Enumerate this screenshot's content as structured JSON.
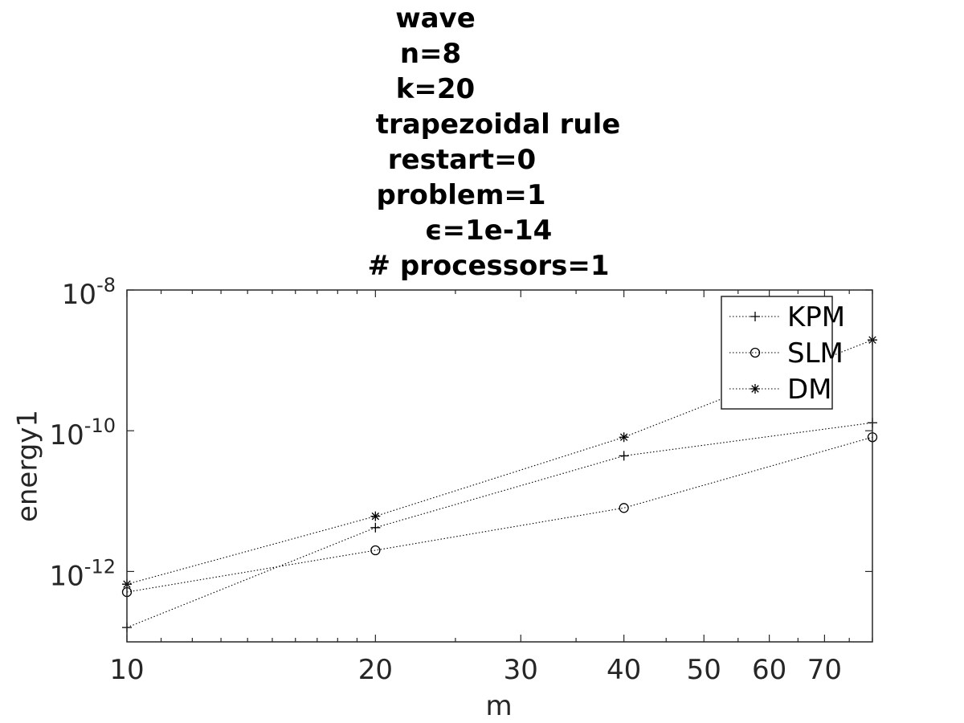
{
  "chart_data": {
    "type": "line",
    "title_lines": [
      "wave",
      "n=8",
      "k=20",
      "trapezoidal rule",
      "restart=0",
      "problem=1",
      "ϵ=1e-14",
      "# processors=1"
    ],
    "xlabel": "m",
    "ylabel": "energy1",
    "x_scale": "log",
    "y_scale": "log",
    "xlim": [
      10,
      80
    ],
    "ylim": [
      1e-13,
      1e-08
    ],
    "x_ticks": [
      10,
      20,
      30,
      40,
      50,
      60,
      70
    ],
    "x_tick_labels": [
      "10",
      "20",
      "30",
      "40",
      "50",
      "60",
      "70"
    ],
    "y_ticks": [
      1e-12,
      1e-10,
      1e-08
    ],
    "y_tick_labels": [
      {
        "base": "10",
        "exp": "-12"
      },
      {
        "base": "10",
        "exp": "-10"
      },
      {
        "base": "10",
        "exp": "-8"
      }
    ],
    "x": [
      10,
      20,
      40,
      80
    ],
    "series": [
      {
        "name": "KPM",
        "marker": "plus",
        "values": [
          1.6e-13,
          4.2e-12,
          4.4e-11,
          1.3e-10
        ]
      },
      {
        "name": "SLM",
        "marker": "circle",
        "values": [
          5.1e-13,
          2e-12,
          8e-12,
          8.1e-11
        ]
      },
      {
        "name": "DM",
        "marker": "star",
        "values": [
          6.6e-13,
          6.1e-12,
          8.1e-11,
          1.95e-09
        ]
      }
    ],
    "line_style": "dotted",
    "line_color": "#000000",
    "grid": false,
    "legend_position": "top-right"
  }
}
